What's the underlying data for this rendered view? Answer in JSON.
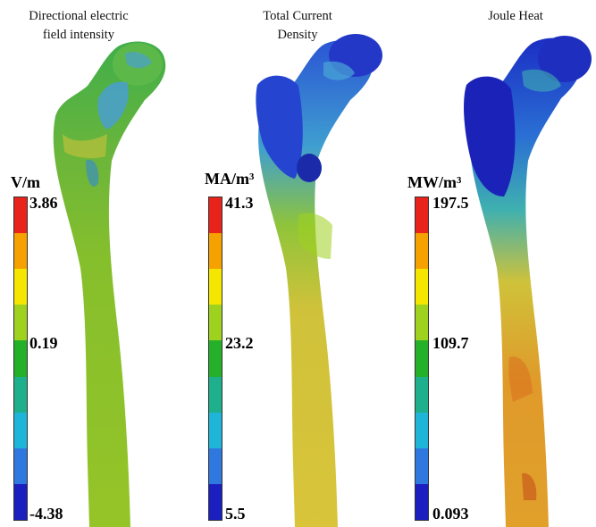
{
  "panels": [
    {
      "title": "Directional electric\nfield intensity",
      "unit": "V/m",
      "ticks": {
        "max": "3.86",
        "mid": "0.19",
        "min": "-4.38"
      }
    },
    {
      "title": "Total Current\nDensity",
      "unit": "MA/m³",
      "ticks": {
        "max": "41.3",
        "mid": "23.2",
        "min": "5.5"
      }
    },
    {
      "title": "Joule Heat",
      "unit": "MW/m³",
      "ticks": {
        "max": "197.5",
        "mid": "109.7",
        "min": "0.093"
      }
    }
  ],
  "colorbar": {
    "levels": 9,
    "colors_top_to_bottom": [
      "#e8231b",
      "#f5a100",
      "#f5e600",
      "#9fd11f",
      "#25b02a",
      "#1eaf8c",
      "#1fb5d8",
      "#2e78e0",
      "#1b1fc0"
    ]
  },
  "palette": {
    "green_bone": "#7fbf2a",
    "yellow_bone": "#d4c93a",
    "orange_bone": "#e0952a",
    "blue_region": "#2545d0",
    "cyan_region": "#4aa7d6"
  }
}
